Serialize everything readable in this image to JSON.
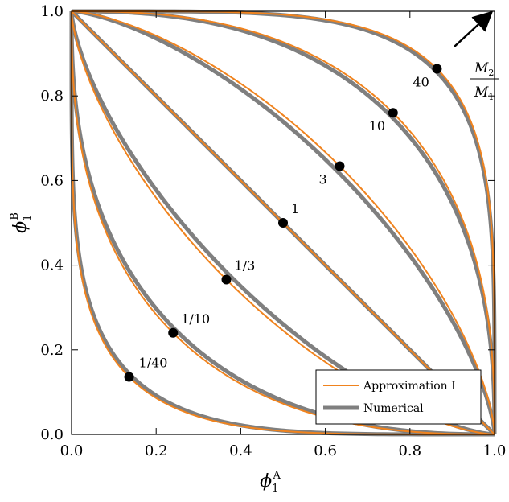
{
  "chart_data": {
    "type": "line",
    "xlabel": "ϕ",
    "xlabel_sub": "1",
    "xlabel_sup": "A",
    "ylabel": "ϕ",
    "ylabel_sub": "1",
    "ylabel_sup": "B",
    "xlim": [
      0,
      1
    ],
    "ylim": [
      0,
      1
    ],
    "xticks": [
      "0.0",
      "0.2",
      "0.4",
      "0.6",
      "0.8",
      "1.0"
    ],
    "yticks": [
      "0.0",
      "0.2",
      "0.4",
      "0.6",
      "0.8",
      "1.0"
    ],
    "legend_position": "bottom-right",
    "series": [
      {
        "name": "Approximation I",
        "color": "#f0831e",
        "style": "thin"
      },
      {
        "name": "Numerical",
        "color": "#7f7f7f",
        "style": "thick"
      }
    ],
    "curves": [
      {
        "ratio_label": "1/40",
        "marker": [
          0.136,
          0.136
        ]
      },
      {
        "ratio_label": "1/10",
        "marker": [
          0.24,
          0.24
        ]
      },
      {
        "ratio_label": "1/3",
        "marker": [
          0.366,
          0.366
        ]
      },
      {
        "ratio_label": "1",
        "marker": [
          0.5,
          0.5
        ]
      },
      {
        "ratio_label": "3",
        "marker": [
          0.634,
          0.634
        ]
      },
      {
        "ratio_label": "10",
        "marker": [
          0.76,
          0.76
        ]
      },
      {
        "ratio_label": "40",
        "marker": [
          0.864,
          0.864
        ]
      }
    ],
    "annotation": {
      "numerator": "M",
      "numerator_sub": "2",
      "denominator": "M",
      "denominator_sub": "1"
    },
    "colors": {
      "approximation": "#f0831e",
      "numerical": "#7f7f7f",
      "marker": "#000000"
    }
  }
}
